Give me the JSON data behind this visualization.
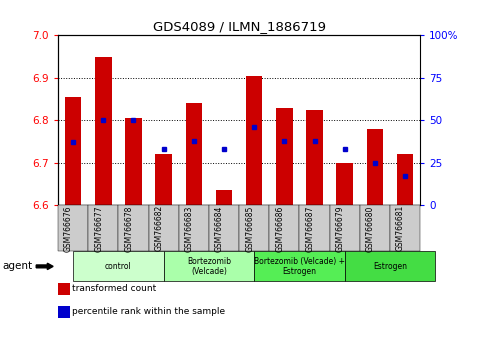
{
  "title": "GDS4089 / ILMN_1886719",
  "samples": [
    "GSM766676",
    "GSM766677",
    "GSM766678",
    "GSM766682",
    "GSM766683",
    "GSM766684",
    "GSM766685",
    "GSM766686",
    "GSM766687",
    "GSM766679",
    "GSM766680",
    "GSM766681"
  ],
  "bar_tops": [
    6.855,
    6.95,
    6.805,
    6.72,
    6.84,
    6.635,
    6.905,
    6.83,
    6.825,
    6.7,
    6.78,
    6.72
  ],
  "bar_bottom": 6.6,
  "percentile_vals": [
    37,
    50,
    50,
    33,
    38,
    33,
    46,
    38,
    38,
    33,
    25,
    17
  ],
  "bar_color": "#cc0000",
  "dot_color": "#0000cc",
  "ylim_left": [
    6.6,
    7.0
  ],
  "ylim_right": [
    0,
    100
  ],
  "yticks_left": [
    6.6,
    6.7,
    6.8,
    6.9,
    7.0
  ],
  "yticks_right": [
    0,
    25,
    50,
    75,
    100
  ],
  "ytick_right_labels": [
    "0",
    "25",
    "50",
    "75",
    "100%"
  ],
  "groups": [
    {
      "label": "control",
      "start": 0,
      "end": 3,
      "color": "#ccffcc"
    },
    {
      "label": "Bortezomib\n(Velcade)",
      "start": 3,
      "end": 6,
      "color": "#aaffaa"
    },
    {
      "label": "Bortezomib (Velcade) +\nEstrogen",
      "start": 6,
      "end": 9,
      "color": "#55ee55"
    },
    {
      "label": "Estrogen",
      "start": 9,
      "end": 12,
      "color": "#44dd44"
    }
  ],
  "agent_label": "agent",
  "legend_items": [
    {
      "color": "#cc0000",
      "label": "transformed count"
    },
    {
      "color": "#0000cc",
      "label": "percentile rank within the sample"
    }
  ],
  "grid_color": "#000000",
  "background_color": "#ffffff",
  "bar_width": 0.55,
  "tick_bg_color": "#cccccc"
}
